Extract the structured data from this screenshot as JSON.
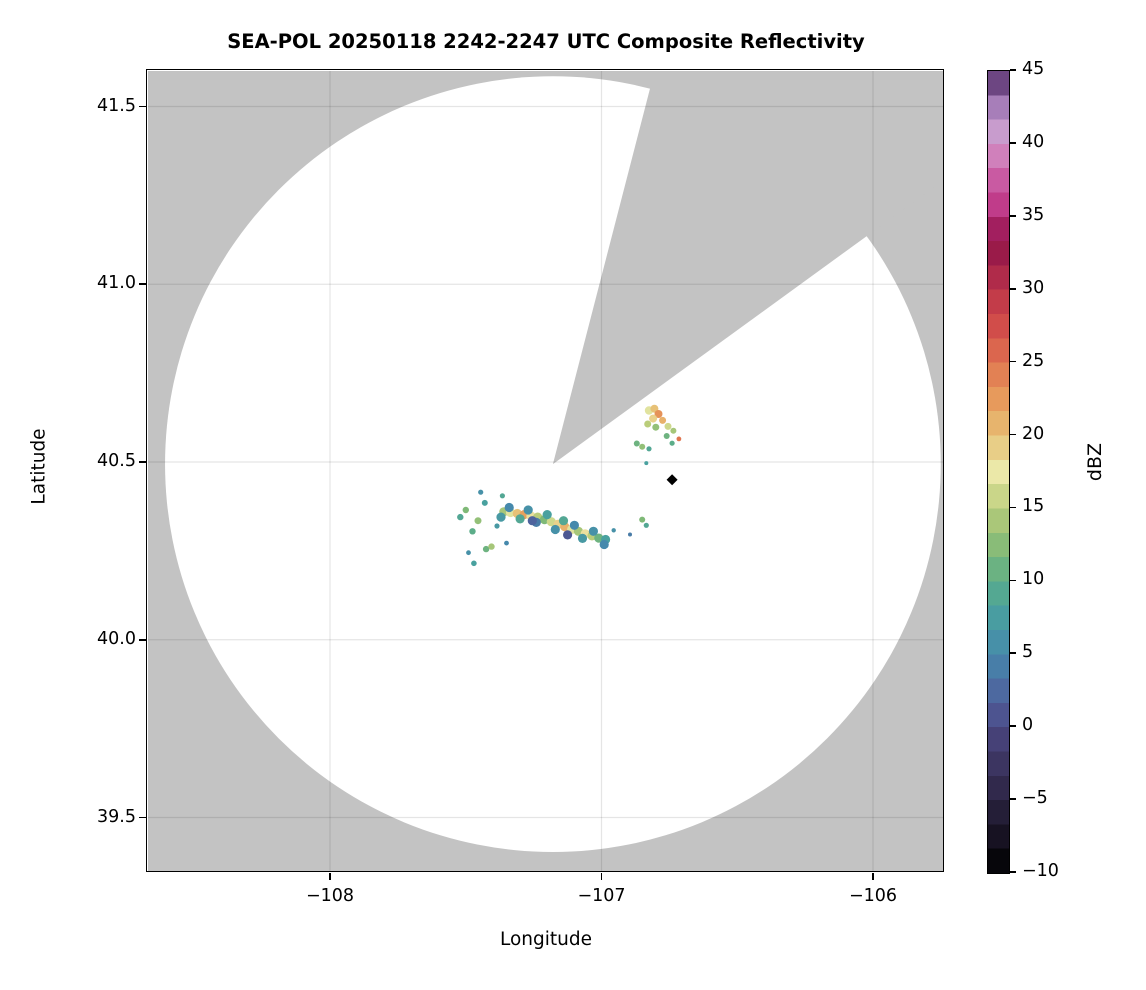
{
  "title": "SEA-POL 20250118 2242-2247 UTC Composite Reflectivity",
  "x_axis": {
    "label": "Longitude",
    "tick_labels": [
      "−108",
      "−107",
      "−106"
    ],
    "tick_values": [
      -108,
      -107,
      -106
    ]
  },
  "y_axis": {
    "label": "Latitude",
    "tick_labels": [
      "41.5",
      "41.0",
      "40.5",
      "40.0",
      "39.5"
    ],
    "tick_values": [
      41.5,
      41.0,
      40.5,
      40.0,
      39.5
    ]
  },
  "colorbar": {
    "label": "dBZ",
    "min": -10,
    "max": 45,
    "tick_labels": [
      "45",
      "40",
      "35",
      "30",
      "25",
      "20",
      "15",
      "10",
      "5",
      "0",
      "−5",
      "−10"
    ],
    "tick_values": [
      45,
      40,
      35,
      30,
      25,
      20,
      15,
      10,
      5,
      0,
      -5,
      -10
    ],
    "stops": [
      {
        "v": -10,
        "c": "#000000"
      },
      {
        "v": -7,
        "c": "#1b1629"
      },
      {
        "v": -4,
        "c": "#322a4e"
      },
      {
        "v": -1,
        "c": "#453f74"
      },
      {
        "v": 0,
        "c": "#4c4a86"
      },
      {
        "v": 2,
        "c": "#4e639d"
      },
      {
        "v": 5,
        "c": "#4689ac"
      },
      {
        "v": 8,
        "c": "#49a19f"
      },
      {
        "v": 10,
        "c": "#5cad89"
      },
      {
        "v": 12,
        "c": "#7fb977"
      },
      {
        "v": 15,
        "c": "#bacd7a"
      },
      {
        "v": 17.5,
        "c": "#ebe8a8"
      },
      {
        "v": 20,
        "c": "#e7c177"
      },
      {
        "v": 22,
        "c": "#e8a15e"
      },
      {
        "v": 25,
        "c": "#e07550"
      },
      {
        "v": 27,
        "c": "#d5524a"
      },
      {
        "v": 30,
        "c": "#bc3349"
      },
      {
        "v": 32,
        "c": "#a01f4b"
      },
      {
        "v": 33.5,
        "c": "#8e1346"
      },
      {
        "v": 35,
        "c": "#bb2f7e"
      },
      {
        "v": 37,
        "c": "#c64f9b"
      },
      {
        "v": 39,
        "c": "#d07cb8"
      },
      {
        "v": 40.5,
        "c": "#cda0d0"
      },
      {
        "v": 42,
        "c": "#b58cc4"
      },
      {
        "v": 43.5,
        "c": "#8b62a4"
      },
      {
        "v": 45,
        "c": "#472457"
      }
    ]
  },
  "colors": {
    "background": "#ffffff",
    "mask_gray": "#c3c3c3",
    "grid": "rgba(0,0,0,0.10)",
    "frame": "#000000",
    "marker": "#000000"
  },
  "chart_data": {
    "type": "heatmap",
    "variable": "composite reflectivity",
    "units": "dBZ",
    "title": "SEA-POL 20250118 2242-2247 UTC Composite Reflectivity",
    "xlabel": "Longitude",
    "ylabel": "Latitude",
    "xlim": [
      -108.67,
      -105.78
    ],
    "ylim": [
      39.35,
      41.6
    ],
    "grid": true,
    "value_range": [
      -10,
      45
    ],
    "radar": {
      "center_lon": -107.179,
      "center_lat": 40.494,
      "coverage_radius_deg": 1.091,
      "blocked_sector_azimuth_deg": [
        14.5,
        54
      ]
    },
    "marker": {
      "lon": -106.74,
      "lat": 40.45,
      "shape": "diamond",
      "color": "#000000"
    },
    "echoes": [
      [
        -107.36,
        40.36,
        14
      ],
      [
        -107.335,
        40.358,
        17
      ],
      [
        -107.31,
        40.355,
        20
      ],
      [
        -107.285,
        40.352,
        22
      ],
      [
        -107.26,
        40.348,
        18
      ],
      [
        -107.235,
        40.345,
        15
      ],
      [
        -107.21,
        40.338,
        12
      ],
      [
        -107.185,
        40.332,
        16
      ],
      [
        -107.16,
        40.325,
        19
      ],
      [
        -107.135,
        40.318,
        21
      ],
      [
        -107.11,
        40.31,
        17
      ],
      [
        -107.085,
        40.305,
        14
      ],
      [
        -107.06,
        40.298,
        18
      ],
      [
        -107.035,
        40.292,
        15
      ],
      [
        -107.01,
        40.286,
        11
      ],
      [
        -106.985,
        40.282,
        8
      ],
      [
        -107.37,
        40.345,
        7
      ],
      [
        -107.34,
        40.372,
        5
      ],
      [
        -107.3,
        40.34,
        9
      ],
      [
        -107.27,
        40.365,
        6
      ],
      [
        -107.24,
        40.33,
        4
      ],
      [
        -107.2,
        40.352,
        8
      ],
      [
        -107.17,
        40.31,
        6
      ],
      [
        -107.14,
        40.335,
        9
      ],
      [
        -107.1,
        40.322,
        5
      ],
      [
        -107.07,
        40.285,
        7
      ],
      [
        -107.03,
        40.305,
        6
      ],
      [
        -106.99,
        40.268,
        5
      ],
      [
        -107.255,
        40.335,
        2
      ],
      [
        -107.125,
        40.295,
        1
      ],
      [
        -107.52,
        40.345,
        9,
        3.2
      ],
      [
        -107.5,
        40.365,
        12,
        3.2
      ],
      [
        -107.475,
        40.305,
        10,
        3.2
      ],
      [
        -107.455,
        40.335,
        13,
        3.5
      ],
      [
        -107.43,
        40.385,
        8,
        3.0
      ],
      [
        -107.425,
        40.255,
        11,
        3.2
      ],
      [
        -107.405,
        40.262,
        14,
        3.2
      ],
      [
        -107.385,
        40.32,
        7,
        2.6
      ],
      [
        -107.365,
        40.405,
        9,
        2.6
      ],
      [
        -107.49,
        40.245,
        6,
        2.4
      ],
      [
        -107.35,
        40.272,
        5,
        2.4
      ],
      [
        -107.445,
        40.415,
        6,
        2.6
      ],
      [
        -107.47,
        40.215,
        8,
        2.8
      ],
      [
        -106.825,
        40.645,
        17,
        4.2
      ],
      [
        -106.805,
        40.65,
        20,
        4.0
      ],
      [
        -106.79,
        40.635,
        23,
        4.0
      ],
      [
        -106.81,
        40.622,
        19,
        4.0
      ],
      [
        -106.83,
        40.607,
        15,
        3.5
      ],
      [
        -106.8,
        40.598,
        13,
        3.5
      ],
      [
        -106.775,
        40.617,
        21,
        3.5
      ],
      [
        -106.755,
        40.6,
        16,
        3.5
      ],
      [
        -106.735,
        40.588,
        14,
        3.0
      ],
      [
        -106.76,
        40.573,
        11,
        3.0
      ],
      [
        -106.715,
        40.565,
        25,
        2.4
      ],
      [
        -106.74,
        40.553,
        10,
        2.6
      ],
      [
        -106.87,
        40.552,
        11,
        3.0
      ],
      [
        -106.85,
        40.543,
        13,
        3.0
      ],
      [
        -106.825,
        40.537,
        9,
        2.6
      ],
      [
        -106.835,
        40.497,
        8,
        2.0
      ],
      [
        -106.85,
        40.338,
        12,
        3.0
      ],
      [
        -106.835,
        40.322,
        9,
        2.6
      ],
      [
        -106.955,
        40.308,
        6,
        2.2
      ],
      [
        -106.895,
        40.296,
        4,
        2.0
      ]
    ]
  }
}
